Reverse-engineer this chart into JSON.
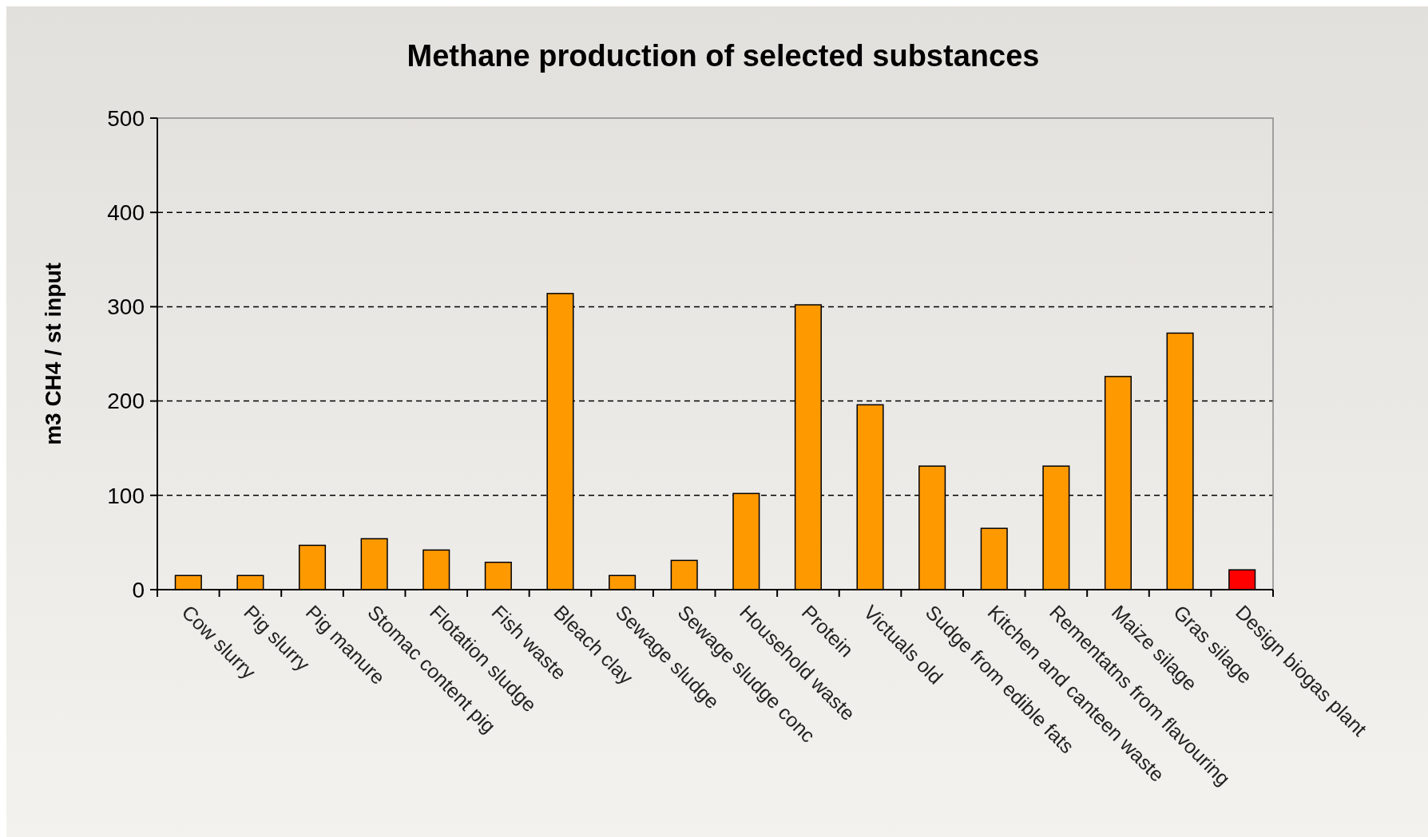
{
  "chart_data": {
    "type": "bar",
    "title": "Methane production of selected substances",
    "ylabel": "m3 CH4 / st input",
    "categories": [
      "Cow slurry",
      "Pig slurry",
      "Pig manure",
      "Stomac content pig",
      "Flotation sludge",
      "Fish waste",
      "Bleach clay",
      "Sewage sludge",
      "Sewage sludge conc",
      "Household waste",
      "Protein",
      "Victuals old",
      "Sudge from edible fats",
      "Kitchen and canteen waste",
      "Rementatns from flavouring",
      "Maize silage",
      "Gras silage",
      "Design biogas plant"
    ],
    "values": [
      15,
      15,
      47,
      54,
      42,
      29,
      314,
      15,
      31,
      102,
      302,
      196,
      131,
      65,
      131,
      226,
      272,
      21
    ],
    "colors": [
      "#ff9900",
      "#ff9900",
      "#ff9900",
      "#ff9900",
      "#ff9900",
      "#ff9900",
      "#ff9900",
      "#ff9900",
      "#ff9900",
      "#ff9900",
      "#ff9900",
      "#ff9900",
      "#ff9900",
      "#ff9900",
      "#ff9900",
      "#ff9900",
      "#ff9900",
      "#ff0000"
    ],
    "ylim": [
      0,
      500
    ],
    "yticks": [
      0,
      100,
      200,
      300,
      400,
      500
    ],
    "grid": "y"
  }
}
